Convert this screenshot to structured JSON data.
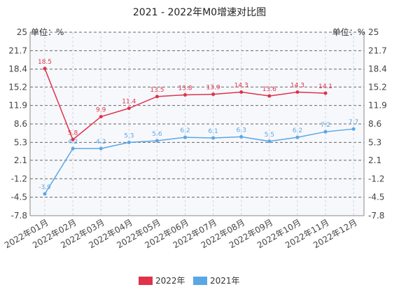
{
  "chart_data": {
    "type": "line",
    "title": "2021 - 2022年M0增速对比图",
    "ylabel_left": "单位：%",
    "ylabel_right": "单位：%",
    "categories": [
      "2022年01月",
      "2022年02月",
      "2022年03月",
      "2022年04月",
      "2022年05月",
      "2022年06月",
      "2022年07月",
      "2022年08月",
      "2022年09月",
      "2022年10月",
      "2022年11月",
      "2022年12月"
    ],
    "yticks": [
      25,
      21.7,
      18.4,
      15.2,
      11.9,
      8.6,
      5.3,
      2.1,
      -1.2,
      -4.5,
      -7.8
    ],
    "ylim": [
      -7.8,
      25
    ],
    "grid": true,
    "legend_position": "bottom",
    "series": [
      {
        "name": "2022年",
        "color": "#e0324b",
        "values": [
          18.5,
          5.8,
          9.9,
          11.4,
          13.5,
          13.8,
          13.9,
          14.3,
          13.6,
          14.3,
          14.1,
          null
        ],
        "labels": [
          "18.5",
          "5.8",
          "9.9",
          "11.4",
          "13.5",
          "13.8",
          "13.9",
          "14.3",
          "13.6",
          "14.3",
          "14.1",
          ""
        ]
      },
      {
        "name": "2021年",
        "color": "#5aa7e6",
        "values": [
          -3.9,
          4.2,
          4.2,
          5.3,
          5.6,
          6.2,
          6.1,
          6.3,
          5.5,
          6.2,
          7.2,
          7.7
        ],
        "labels": [
          "-3.9",
          "4.2",
          "4.2",
          "5.3",
          "5.6",
          "6.2",
          "6.1",
          "6.3",
          "5.5",
          "6.2",
          "7.2",
          "7.7"
        ]
      }
    ]
  }
}
